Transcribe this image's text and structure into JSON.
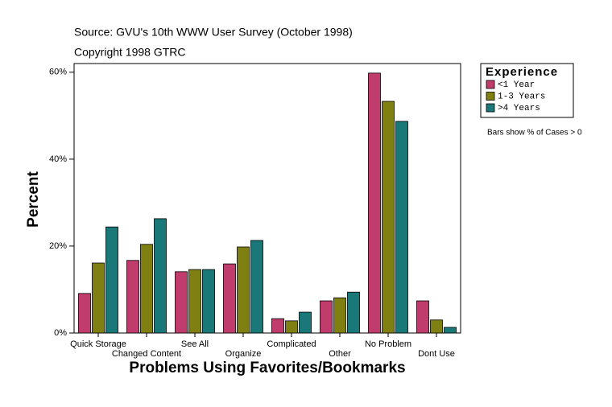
{
  "chart_data": {
    "type": "bar",
    "source": "Source: GVU's 10th WWW User Survey (October 1998)",
    "copyright": "Copyright 1998 GTRC",
    "x_label": "Problems Using Favorites/Bookmarks",
    "y_label": "Percent",
    "legend_title": "Experience",
    "note": "Bars show % of Cases > 0",
    "categories": [
      "Quick Storage",
      "Changed Content",
      "See All",
      "Organize",
      "Complicated",
      "Other",
      "No Problem",
      "Dont Use"
    ],
    "series": [
      {
        "name": "<1 Year",
        "color": "#c03c6c",
        "values": [
          9.1,
          16.7,
          14.1,
          15.9,
          3.3,
          7.4,
          59.8,
          7.4
        ]
      },
      {
        "name": "1-3 Years",
        "color": "#808012",
        "values": [
          16.1,
          20.4,
          14.6,
          19.8,
          2.8,
          8.1,
          53.3,
          3.0
        ]
      },
      {
        "name": ">4 Years",
        "color": "#1a7878",
        "values": [
          24.4,
          26.3,
          14.6,
          21.3,
          4.8,
          9.4,
          48.7,
          1.3
        ]
      }
    ],
    "ylim": [
      0,
      62
    ],
    "yticks": [
      {
        "value": 0,
        "label": "0%"
      },
      {
        "value": 20,
        "label": "20%"
      },
      {
        "value": 40,
        "label": "40%"
      },
      {
        "value": 60,
        "label": "60%"
      }
    ]
  }
}
